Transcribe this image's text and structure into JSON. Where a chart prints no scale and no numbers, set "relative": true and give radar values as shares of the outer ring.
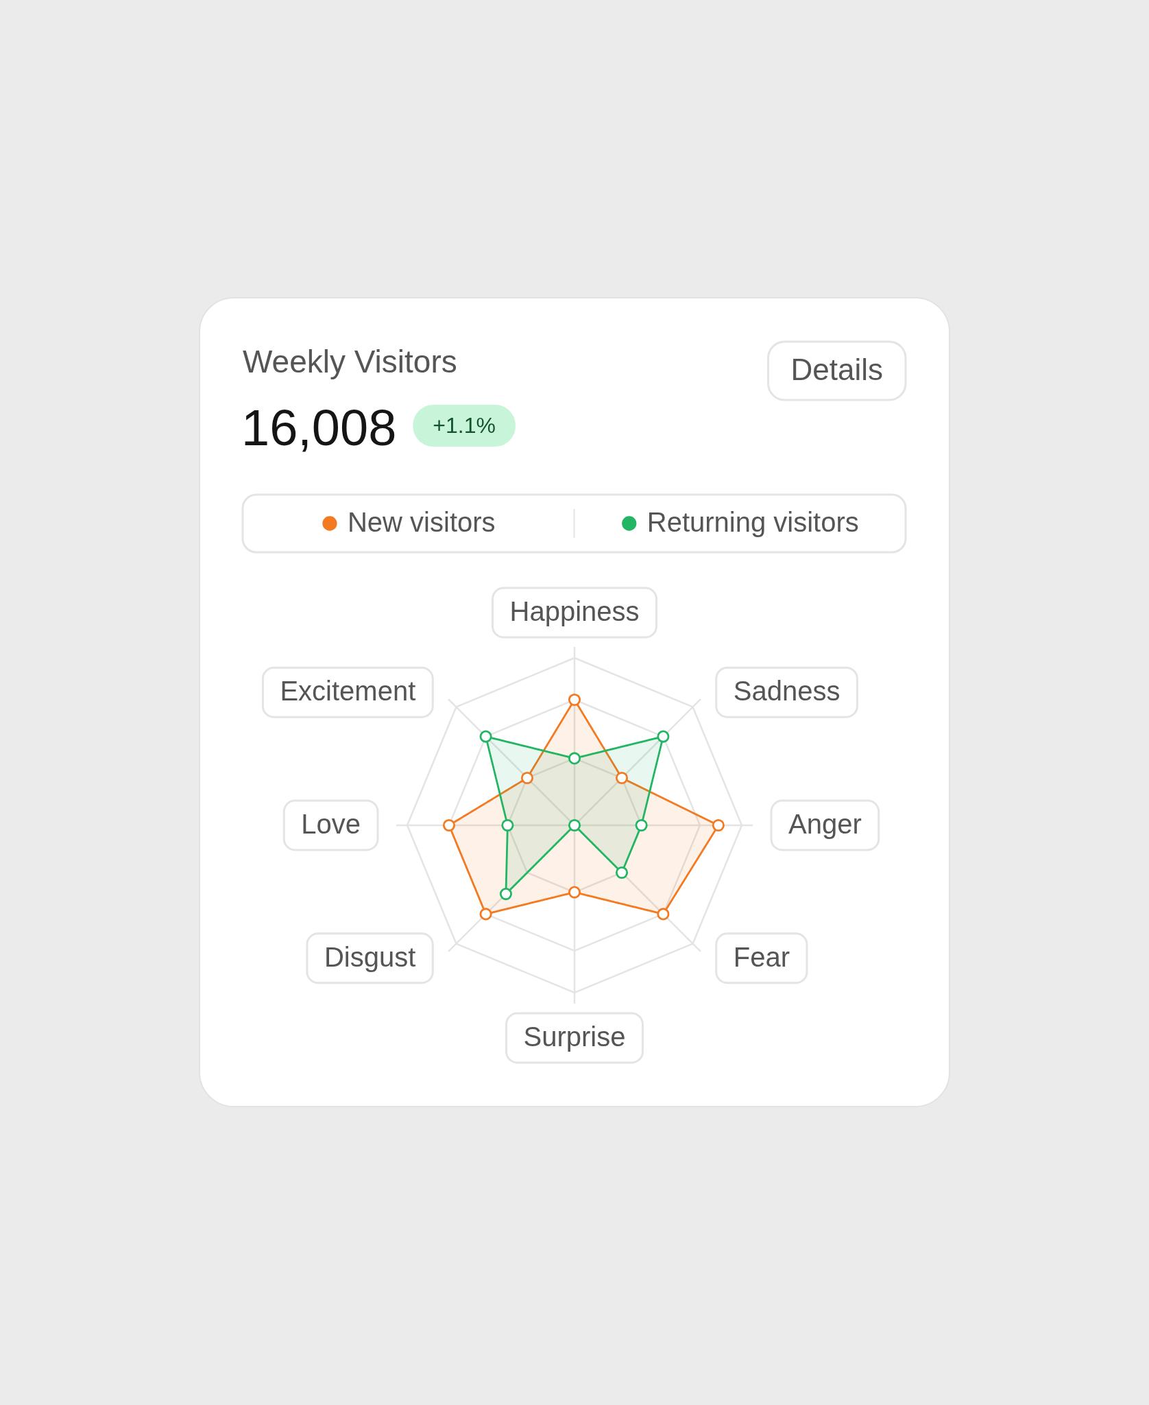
{
  "chart_data": {
    "type": "radar",
    "title": "Weekly Visitors",
    "annotations": [
      "16,008",
      "+1.1%",
      "Details"
    ],
    "categories": [
      "Happiness",
      "Sadness",
      "Anger",
      "Fear",
      "Surprise",
      "Disgust",
      "Love",
      "Excitement"
    ],
    "relative": true,
    "series": [
      {
        "name": "New visitors",
        "color": "#f47a22",
        "values": [
          0.75,
          0.4,
          0.86,
          0.75,
          0.4,
          0.75,
          0.75,
          0.4
        ]
      },
      {
        "name": "Returning visitors",
        "color": "#22b563",
        "values": [
          0.4,
          0.75,
          0.4,
          0.4,
          0,
          0.58,
          0.4,
          0.75
        ]
      }
    ],
    "legend": "top",
    "grid": true,
    "marker": "circle",
    "line_style": "solid"
  }
}
